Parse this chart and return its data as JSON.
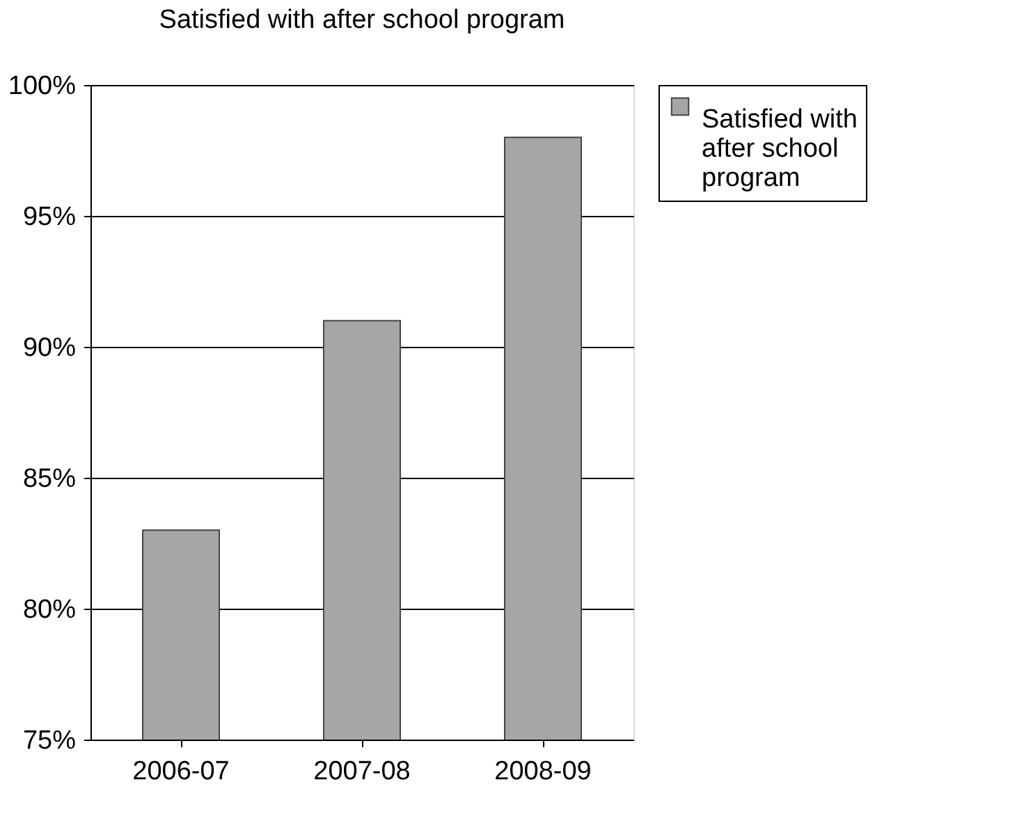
{
  "chart_data": {
    "type": "bar",
    "title": "Satisfied with after school program",
    "categories": [
      "2006-07",
      "2007-08",
      "2008-09"
    ],
    "series": [
      {
        "name": "Satisfied with after school program",
        "color": "#a6a6a6",
        "values": [
          83,
          91,
          98
        ]
      }
    ],
    "ylim": [
      75,
      100
    ],
    "yticks": [
      {
        "value": 75,
        "label": "75%"
      },
      {
        "value": 80,
        "label": "80%"
      },
      {
        "value": 85,
        "label": "85%"
      },
      {
        "value": 90,
        "label": "90%"
      },
      {
        "value": 95,
        "label": "95%"
      },
      {
        "value": 100,
        "label": "100%"
      }
    ],
    "grid": "y",
    "legend": "right"
  }
}
